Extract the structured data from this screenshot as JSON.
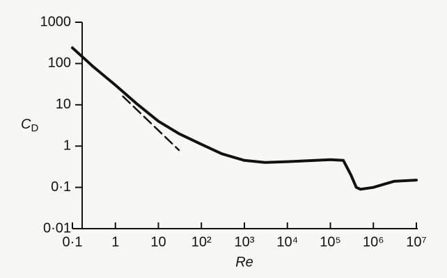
{
  "chart_data": {
    "type": "line",
    "log_x": true,
    "log_y": true,
    "xlabel": "Re",
    "ylabel": "C",
    "ylabel_subscript": "D",
    "xlim": [
      0.1,
      10000000
    ],
    "ylim": [
      0.01,
      1000
    ],
    "xticks": [
      {
        "value": 0.1,
        "label": "0·1"
      },
      1,
      10,
      {
        "value": 100,
        "label": "10²"
      },
      {
        "value": 1000,
        "label": "10³"
      },
      {
        "value": 10000,
        "label": "10⁴"
      },
      {
        "value": 100000,
        "label": "10⁵"
      },
      {
        "value": 1000000,
        "label": "10⁶"
      },
      {
        "value": 10000000,
        "label": "10⁷"
      }
    ],
    "yticks": [
      {
        "value": 0.01,
        "label": "0·01"
      },
      {
        "value": 0.1,
        "label": "0·1"
      },
      1,
      10,
      100,
      1000
    ],
    "series": [
      {
        "color": "#111111",
        "style": "solid",
        "x": [
          0.1,
          0.3,
          1,
          3,
          10,
          30,
          100,
          300,
          1000,
          3000,
          10000,
          100000,
          200000,
          300000,
          400000,
          500000,
          1000000,
          3000000,
          10000000
        ],
        "values": [
          240,
          85,
          30,
          11,
          4,
          2,
          1.1,
          0.65,
          0.45,
          0.4,
          0.42,
          0.47,
          0.45,
          0.2,
          0.1,
          0.09,
          0.1,
          0.14,
          0.15
        ]
      },
      {
        "color": "#111111",
        "style": "dashed",
        "x": [
          1.5,
          30
        ],
        "values": [
          16,
          0.8
        ]
      }
    ]
  }
}
